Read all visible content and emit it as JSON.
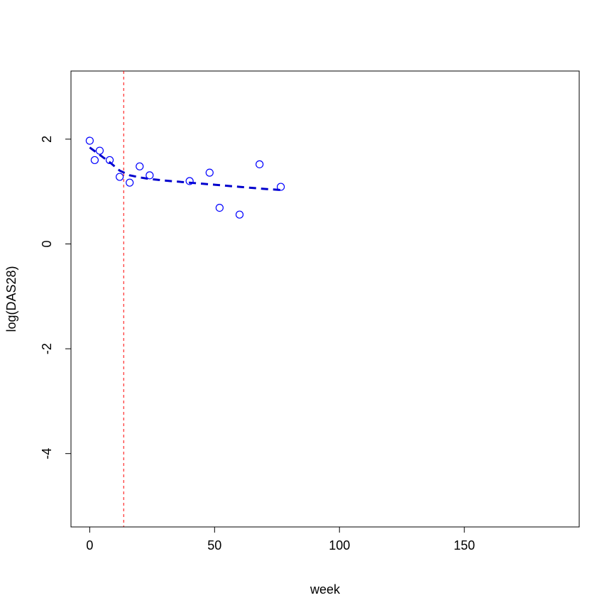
{
  "chart_data": {
    "type": "scatter",
    "title": "",
    "xlabel": "week",
    "ylabel": "log(DAS28)",
    "xlim": [
      -7.5,
      196
    ],
    "ylim": [
      -5.4,
      3.3
    ],
    "x_ticks": [
      0,
      50,
      100,
      150
    ],
    "y_ticks": [
      -4,
      -2,
      0,
      2
    ],
    "grid": false,
    "legend": "none",
    "colors": {
      "points": "#0000ff",
      "fit_line": "#0000cd",
      "reference_line": "#ff0000",
      "frame": "#000000"
    },
    "series": [
      {
        "kind": "points",
        "x": [
          0,
          2,
          4,
          8,
          12,
          16,
          20,
          24,
          40,
          48,
          52,
          60,
          68,
          76.5
        ],
        "y": [
          1.97,
          1.6,
          1.78,
          1.6,
          1.28,
          1.17,
          1.48,
          1.31,
          1.2,
          1.36,
          0.69,
          0.56,
          1.52,
          1.09
        ]
      },
      {
        "kind": "fitted-line",
        "x": [
          0,
          4,
          8,
          12,
          16,
          20,
          24,
          30,
          40,
          50,
          60,
          70,
          76.5
        ],
        "y": [
          1.84,
          1.7,
          1.56,
          1.4,
          1.31,
          1.27,
          1.24,
          1.21,
          1.17,
          1.13,
          1.09,
          1.05,
          1.03
        ]
      }
    ],
    "reference_lines": [
      {
        "orientation": "vertical",
        "x": 13.6,
        "style": "dashed"
      }
    ]
  }
}
